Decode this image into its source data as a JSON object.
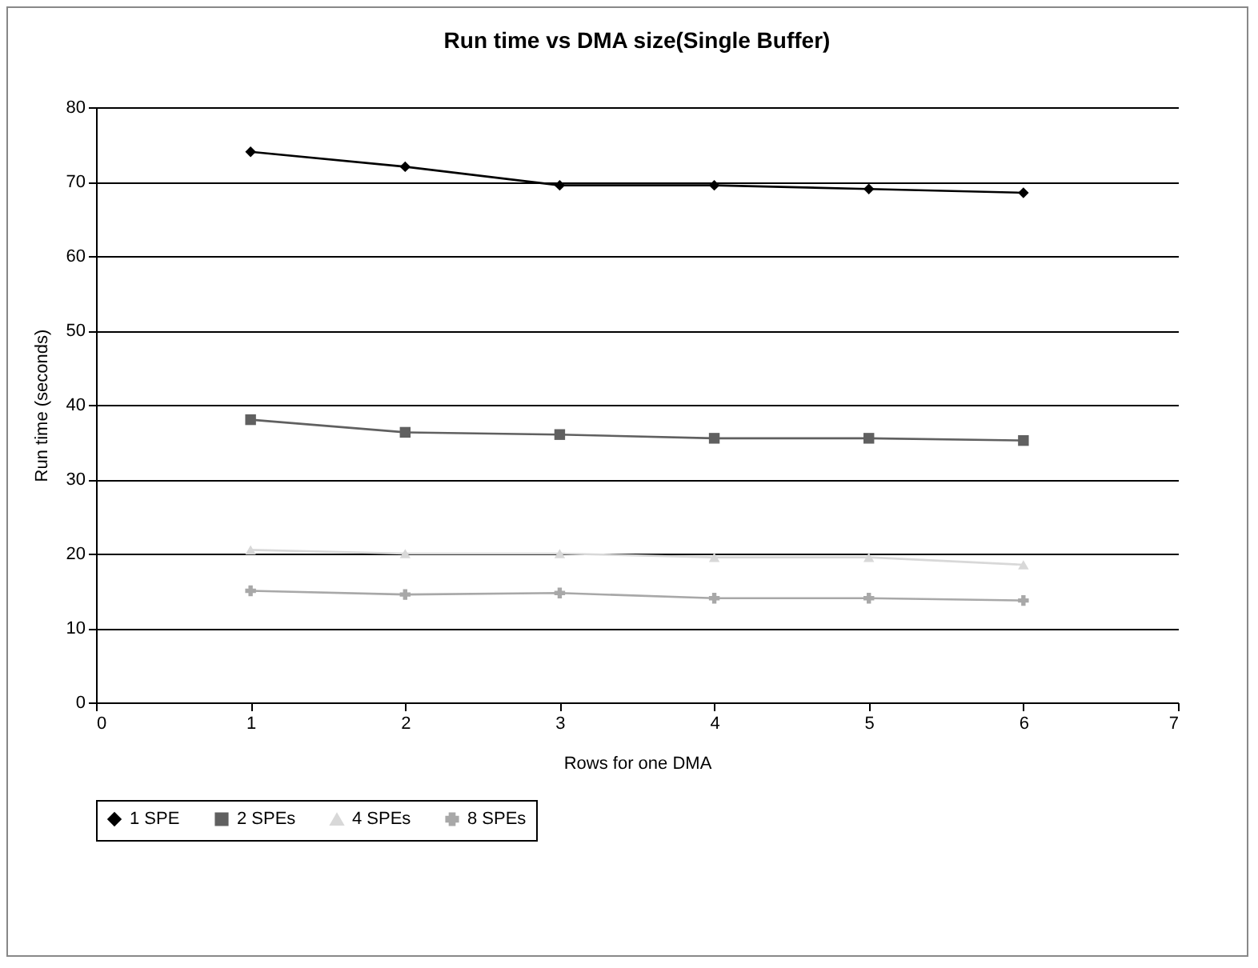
{
  "chart_data": {
    "type": "line",
    "title": "Run time vs DMA size(Single Buffer)",
    "xlabel": "Rows for one DMA",
    "ylabel": "Run time (seconds)",
    "x": [
      1,
      2,
      3,
      4,
      5,
      6
    ],
    "series": [
      {
        "name": "1 SPE",
        "color": "#000000",
        "marker": "diamond",
        "values": [
          74,
          72,
          69.5,
          69.5,
          69,
          68.5
        ]
      },
      {
        "name": "2 SPEs",
        "color": "#606060",
        "marker": "square",
        "values": [
          38,
          36.3,
          36,
          35.5,
          35.5,
          35.2
        ]
      },
      {
        "name": "4 SPEs",
        "color": "#d8d8d8",
        "marker": "triangle",
        "values": [
          20.5,
          20,
          20,
          19.5,
          19.5,
          18.5
        ]
      },
      {
        "name": "8 SPEs",
        "color": "#a8a8a8",
        "marker": "cross",
        "values": [
          15,
          14.5,
          14.7,
          14,
          14,
          13.7
        ]
      }
    ],
    "xlim": [
      0,
      7
    ],
    "xticks": [
      0,
      1,
      2,
      3,
      4,
      5,
      6,
      7
    ],
    "ylim": [
      0,
      80
    ],
    "yticks": [
      0,
      10,
      20,
      30,
      40,
      50,
      60,
      70,
      80
    ],
    "grid": "y",
    "legend": "bottom",
    "line_style": "solid"
  }
}
